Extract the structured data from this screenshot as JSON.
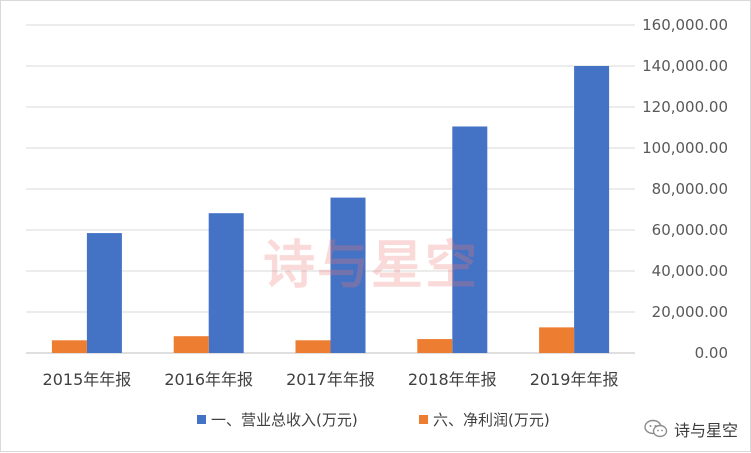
{
  "chart_data": {
    "type": "bar",
    "categories": [
      "2015年年报",
      "2016年年报",
      "2017年年报",
      "2018年年报",
      "2019年年报"
    ],
    "series": [
      {
        "name": "一、营业总收入(万元)",
        "values": [
          58500,
          68200,
          75800,
          110500,
          140000
        ],
        "color": "#4472c4"
      },
      {
        "name": "六、净利润(万元)",
        "values": [
          6200,
          8200,
          6200,
          6800,
          12500
        ],
        "color": "#ed7d31"
      }
    ],
    "yticks": [
      "0.00",
      "20,000.00",
      "40,000.00",
      "60,000.00",
      "80,000.00",
      "100,000.00",
      "120,000.00",
      "140,000.00",
      "160,000.00"
    ],
    "ylim": [
      0,
      160000
    ],
    "y_axis_side": "right",
    "grid": true,
    "legend_position": "bottom"
  },
  "watermark": "诗与星空",
  "brand_label": "诗与星空",
  "brand_icon": "wechat-icon"
}
